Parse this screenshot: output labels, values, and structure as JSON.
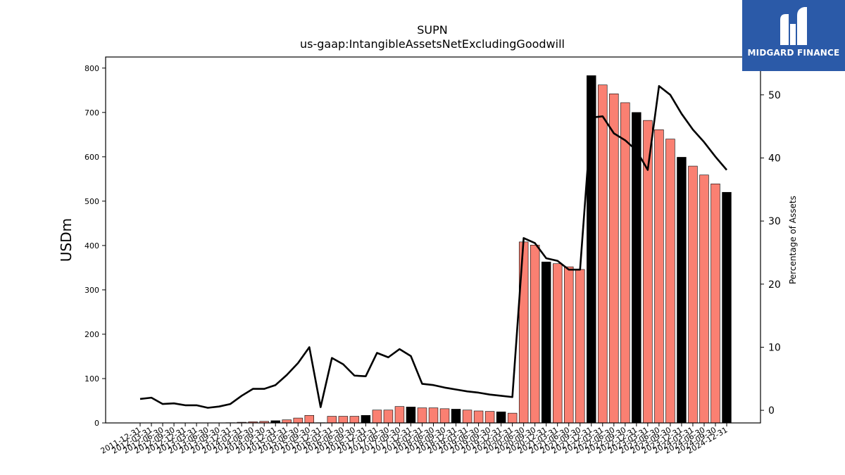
{
  "logo": {
    "text": "MIDGARD FINANCE",
    "icon": "midgard-m-icon"
  },
  "colors": {
    "bar_primary": "#fa8072",
    "bar_highlight": "#000000",
    "line": "#000000"
  },
  "chart_data": {
    "type": "bar",
    "title": "SUPN",
    "subtitle": "us-gaap:IntangibleAssetsNetExcludingGoodwill",
    "ylabel": "USDm",
    "y2label": "Percentage of Assets",
    "ylim": [
      0,
      825
    ],
    "y2lim": [
      -2,
      56
    ],
    "yticks": [
      0,
      100,
      200,
      300,
      400,
      500,
      600,
      700,
      800
    ],
    "y2ticks": [
      0,
      10,
      20,
      30,
      40,
      50
    ],
    "categories": [
      "2011-12-31",
      "2012-03-31",
      "2012-06-30",
      "2012-09-30",
      "2012-12-31",
      "2013-03-31",
      "2013-06-30",
      "2013-09-30",
      "2013-12-31",
      "2014-03-31",
      "2014-06-30",
      "2014-09-30",
      "2014-12-31",
      "2015-03-31",
      "2015-06-30",
      "2015-09-30",
      "2015-12-31",
      "2016-03-31",
      "2016-06-30",
      "2016-09-30",
      "2016-12-31",
      "2017-03-31",
      "2017-06-30",
      "2017-09-30",
      "2017-12-31",
      "2018-03-31",
      "2018-06-30",
      "2018-09-30",
      "2018-12-31",
      "2019-03-31",
      "2019-06-30",
      "2019-09-30",
      "2019-12-31",
      "2020-03-31",
      "2020-06-30",
      "2020-09-30",
      "2020-12-31",
      "2021-03-31",
      "2021-06-30",
      "2021-09-30",
      "2021-12-31",
      "2022-03-31",
      "2022-06-30",
      "2022-09-30",
      "2022-12-31",
      "2023-03-31",
      "2023-06-30",
      "2023-09-30",
      "2023-12-31",
      "2024-03-31",
      "2024-06-30",
      "2024-09-30",
      "2024-12-31"
    ],
    "series": [
      {
        "type": "bar",
        "values": [
          0.2,
          0.2,
          0.2,
          0.2,
          0.2,
          0.2,
          0.2,
          0.2,
          0.5,
          1.5,
          2.5,
          3.5,
          5,
          7,
          11,
          17,
          0.5,
          15,
          15,
          15,
          17,
          29,
          29,
          37,
          36,
          34,
          34,
          32,
          31,
          29,
          27,
          26,
          25,
          22,
          408,
          401,
          363,
          359,
          352,
          346,
          783,
          762,
          742,
          722,
          700,
          682,
          661,
          640,
          599,
          579,
          559,
          539,
          520
        ],
        "highlight": [
          false,
          false,
          false,
          false,
          true,
          false,
          false,
          false,
          true,
          false,
          false,
          false,
          true,
          false,
          false,
          false,
          true,
          false,
          false,
          false,
          true,
          false,
          false,
          false,
          true,
          false,
          false,
          false,
          true,
          false,
          false,
          false,
          true,
          false,
          false,
          false,
          true,
          false,
          false,
          false,
          true,
          false,
          false,
          false,
          true,
          false,
          false,
          false,
          true,
          false,
          false,
          false,
          true
        ]
      },
      {
        "type": "line",
        "axis": "right",
        "values": [
          1.8,
          2.0,
          1.0,
          1.1,
          0.8,
          0.8,
          0.4,
          0.6,
          1.0,
          2.3,
          3.4,
          3.4,
          4.0,
          5.6,
          7.5,
          10.0,
          0.5,
          8.3,
          7.3,
          5.5,
          5.4,
          9.1,
          8.4,
          9.7,
          8.6,
          4.2,
          4.0,
          3.6,
          3.3,
          3.0,
          2.8,
          2.5,
          2.3,
          2.1,
          27.3,
          26.5,
          24.1,
          23.7,
          22.3,
          22.3,
          46.4,
          46.6,
          43.9,
          42.8,
          41.2,
          38.1,
          51.4,
          50.0,
          47.0,
          44.5,
          42.5,
          40.2,
          38.1
        ]
      }
    ]
  }
}
